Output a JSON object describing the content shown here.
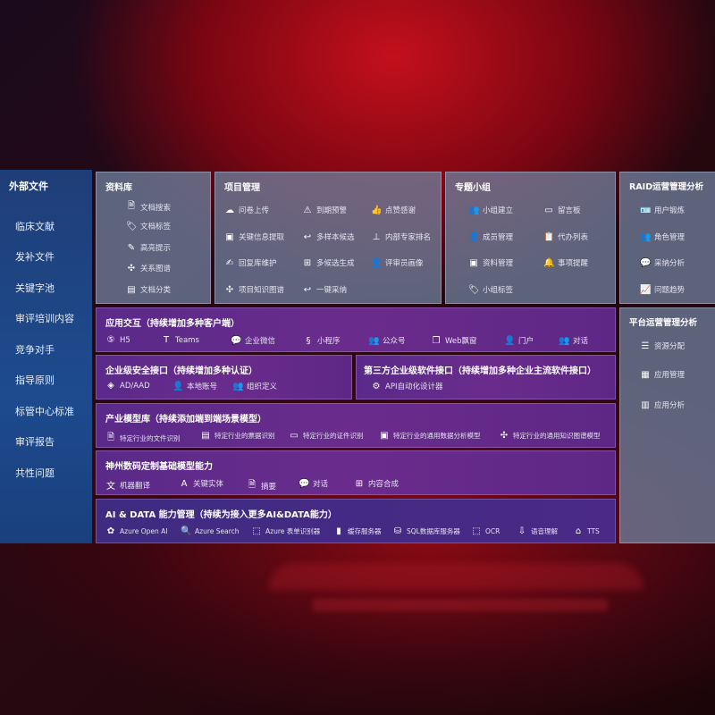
{
  "sidebar": {
    "title": "外部文件",
    "items": [
      "临床文献",
      "发补文件",
      "关键字池",
      "审评培训内容",
      "竞争对手",
      "指导原则",
      "标管中心标准",
      "审评报告",
      "共性问题"
    ]
  },
  "library": {
    "title": "资料库",
    "items": [
      {
        "icon": "doc-search-icon",
        "label": "文档搜索"
      },
      {
        "icon": "tag-icon",
        "label": "文档标签"
      },
      {
        "icon": "pen-icon",
        "label": "高亮提示"
      },
      {
        "icon": "graph-icon",
        "label": "关系图谱"
      },
      {
        "icon": "doc-icon",
        "label": "文档分类"
      }
    ]
  },
  "project": {
    "title": "项目管理",
    "items": [
      {
        "icon": "cloud-upload-icon",
        "label": "问卷上传"
      },
      {
        "icon": "alarm-icon",
        "label": "到期预警"
      },
      {
        "icon": "thumbs-up-icon",
        "label": "点赞感谢"
      },
      {
        "icon": "window-icon",
        "label": "关键信息提取"
      },
      {
        "icon": "reply-icon",
        "label": "多样本候选"
      },
      {
        "icon": "ranking-icon",
        "label": "内部专家排名"
      },
      {
        "icon": "edit-icon",
        "label": "回复库维护"
      },
      {
        "icon": "puzzle-icon",
        "label": "多候选生成"
      },
      {
        "icon": "person-icon",
        "label": "评审员画像"
      },
      {
        "icon": "graph-icon",
        "label": "项目知识图谱"
      },
      {
        "icon": "reply-icon",
        "label": "一键采纳"
      }
    ]
  },
  "group": {
    "title": "专题小组",
    "items": [
      {
        "icon": "users-icon",
        "label": "小组建立"
      },
      {
        "icon": "bbs-icon",
        "label": "留言板"
      },
      {
        "icon": "user-add-icon",
        "label": "成员管理"
      },
      {
        "icon": "clipboard-icon",
        "label": "代办列表"
      },
      {
        "icon": "folder-icon",
        "label": "资料管理"
      },
      {
        "icon": "bell-icon",
        "label": "事项提醒"
      },
      {
        "icon": "tag-icon",
        "label": "小组标签"
      }
    ]
  },
  "raid": {
    "title": "RAID运营管理分析",
    "items": [
      {
        "icon": "id-card-icon",
        "label": "用户锻炼"
      },
      {
        "icon": "users-icon",
        "label": "角色管理"
      },
      {
        "icon": "qa-icon",
        "label": "采纳分析"
      },
      {
        "icon": "trend-icon",
        "label": "问题趋势"
      }
    ]
  },
  "platform": {
    "title": "平台运营管理分析",
    "items": [
      {
        "icon": "list-icon",
        "label": "资源分配"
      },
      {
        "icon": "apps-icon",
        "label": "应用管理"
      },
      {
        "icon": "chart-icon",
        "label": "应用分析"
      }
    ]
  },
  "app": {
    "title": "应用交互（持续增加多种客户端）",
    "items": [
      {
        "icon": "html5-icon",
        "label": "H5"
      },
      {
        "icon": "teams-icon",
        "label": "Teams"
      },
      {
        "icon": "wecom-icon",
        "label": "企业微信"
      },
      {
        "icon": "miniprogram-icon",
        "label": "小程序"
      },
      {
        "icon": "official-account-icon",
        "label": "公众号"
      },
      {
        "icon": "window-icon",
        "label": "Web飘窗"
      },
      {
        "icon": "portal-icon",
        "label": "门户"
      },
      {
        "icon": "chat-icon",
        "label": "对话"
      }
    ]
  },
  "security": {
    "title": "企业级安全接口（持续增加多种认证）",
    "items": [
      {
        "icon": "ad-icon",
        "label": "AD/AAD"
      },
      {
        "icon": "local-account-icon",
        "label": "本地账号"
      },
      {
        "icon": "org-icon",
        "label": "组织定义"
      }
    ]
  },
  "thirdparty": {
    "title": "第三方企业级软件接口（持续增加多种企业主流软件接口）",
    "items": [
      {
        "icon": "gear-icon",
        "label": "API自动化设计器"
      }
    ]
  },
  "industry": {
    "title": "产业模型库（持续添加端到端场景模型）",
    "items": [
      {
        "icon": "file-icon",
        "label": "特定行业的文件识别"
      },
      {
        "icon": "receipt-icon",
        "label": "特定行业的票据识别"
      },
      {
        "icon": "id-card-icon",
        "label": "特定行业的证件识别"
      },
      {
        "icon": "data-chart-icon",
        "label": "特定行业的通用数据分析模型"
      },
      {
        "icon": "graph-icon",
        "label": "特定行业的通用知识图谱模型"
      }
    ]
  },
  "base": {
    "title": "神州数码定制基础模型能力",
    "items": [
      {
        "icon": "translate-icon",
        "label": "机器翻译"
      },
      {
        "icon": "entity-icon",
        "label": "关键实体"
      },
      {
        "icon": "summary-icon",
        "label": "摘要"
      },
      {
        "icon": "chat-icon",
        "label": "对话"
      },
      {
        "icon": "puzzle-icon",
        "label": "内容合成"
      }
    ]
  },
  "ai": {
    "title": "AI & DATA 能力管理（持续为接入更多AI&DATA能力）",
    "items": [
      {
        "icon": "openai-icon",
        "label": "Azure Open AI"
      },
      {
        "icon": "search-icon",
        "label": "Azure Search"
      },
      {
        "icon": "form-icon",
        "label": "Azure 表单识别器"
      },
      {
        "icon": "cache-icon",
        "label": "缓存服务器"
      },
      {
        "icon": "database-icon",
        "label": "SQL数据库服务器"
      },
      {
        "icon": "ocr-icon",
        "label": "OCR"
      },
      {
        "icon": "speech-icon",
        "label": "语音理解"
      },
      {
        "icon": "tts-icon",
        "label": "TTS"
      }
    ]
  }
}
